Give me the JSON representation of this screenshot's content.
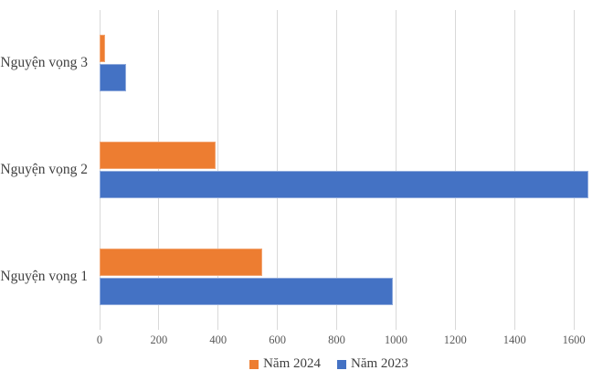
{
  "chart_data": {
    "type": "bar",
    "orientation": "horizontal",
    "title": "",
    "xlabel": "",
    "ylabel": "",
    "categories": [
      "Nguyện vọng 3",
      "Nguyện vọng 2",
      "Nguyện vọng 1"
    ],
    "series": [
      {
        "name": "Năm 2024",
        "color": "#ED7D31",
        "border_color": "#F2A572",
        "values": [
          20,
          390,
          550
        ]
      },
      {
        "name": "Năm 2023",
        "color": "#4472C4",
        "border_color": "#8FAADC",
        "values": [
          90,
          1650,
          990
        ]
      }
    ],
    "x_axis": {
      "ticks": [
        0,
        200,
        400,
        600,
        800,
        1000,
        1200,
        1400,
        1600
      ],
      "tick_interval": 200,
      "max": 1683
    },
    "gridlines": true,
    "legend_position": "bottom",
    "colors": {
      "gridline": "#D9D9D9",
      "tick_text": "#595959",
      "label_text": "#3F3F3F",
      "background": "#FFFFFF"
    }
  }
}
